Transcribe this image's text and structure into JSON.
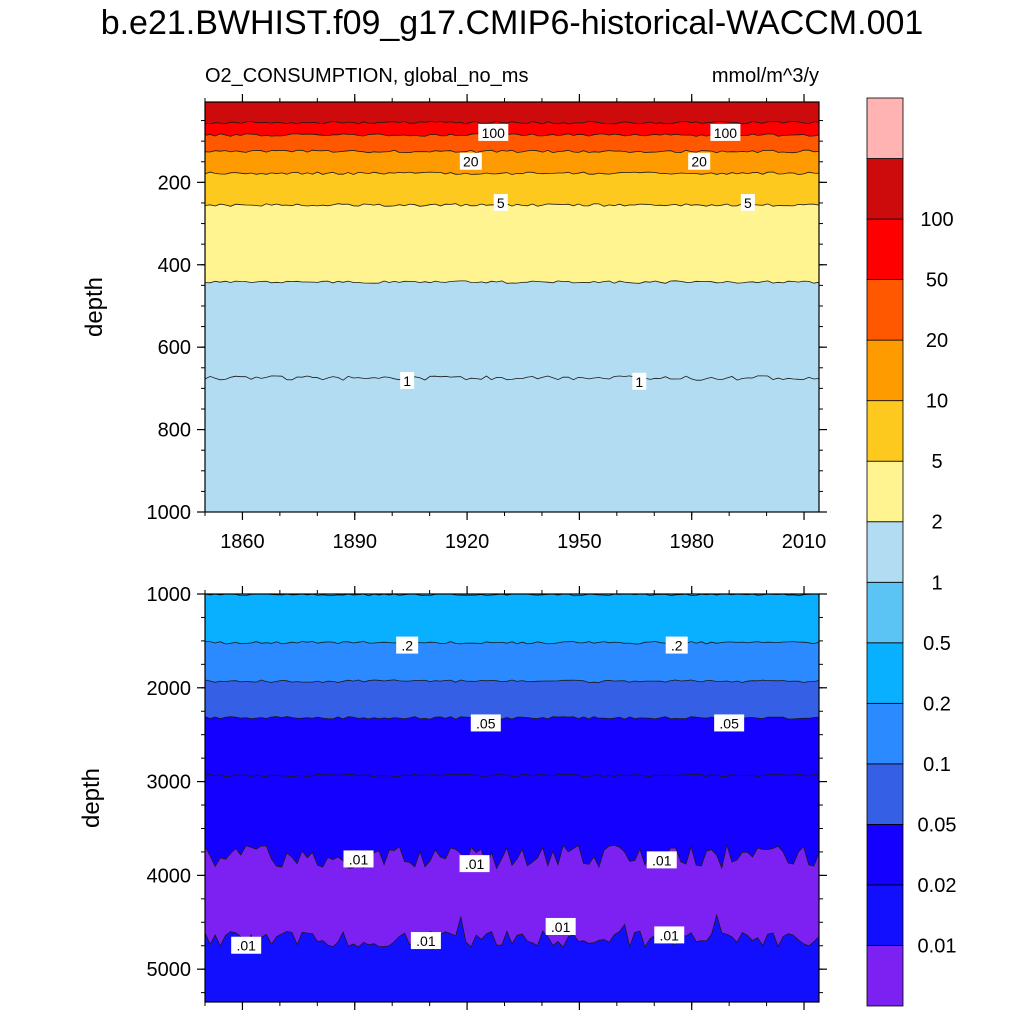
{
  "figure": {
    "title": "b.e21.BWHIST.f09_g17.CMIP6-historical-WACCM.001",
    "left_string": "O2_CONSUMPTION, global_no_ms",
    "right_string": "mmol/m^3/y"
  },
  "chart_data": [
    {
      "type": "contour",
      "panel": "upper",
      "ylabel": "depth",
      "xlabel": "",
      "xlim": [
        1850,
        2014
      ],
      "ylim": [
        1000,
        5
      ],
      "x_ticks": [
        "1860",
        "1890",
        "1920",
        "1950",
        "1980",
        "2010"
      ],
      "y_ticks": [
        "200",
        "400",
        "600",
        "800",
        "1000"
      ],
      "contour_levels": [
        0.01,
        0.02,
        0.05,
        0.1,
        0.2,
        0.5,
        1,
        2,
        5,
        10,
        20,
        50,
        100
      ],
      "contour_depths": [
        {
          "level": 100,
          "depth": 55
        },
        {
          "level": 50,
          "depth": 85
        },
        {
          "level": 20,
          "depth": 125
        },
        {
          "level": 10,
          "depth": 178
        },
        {
          "level": 5,
          "depth": 255
        },
        {
          "level": 2,
          "depth": 442
        },
        {
          "level": 1,
          "depth": 675
        }
      ],
      "contour_labels": [
        {
          "text": "100",
          "x": 1927,
          "depth": 80
        },
        {
          "text": "100",
          "x": 1989,
          "depth": 80
        },
        {
          "text": "20",
          "x": 1921,
          "depth": 150
        },
        {
          "text": "20",
          "x": 1982,
          "depth": 150
        },
        {
          "text": "5",
          "x": 1929,
          "depth": 250
        },
        {
          "text": "5",
          "x": 1995,
          "depth": 250
        },
        {
          "text": "1",
          "x": 1904,
          "depth": 682
        },
        {
          "text": "1",
          "x": 1966,
          "depth": 684
        }
      ]
    },
    {
      "type": "contour",
      "panel": "lower",
      "ylabel": "depth",
      "xlabel": "",
      "xlim": [
        1850,
        2014
      ],
      "ylim": [
        5350,
        1000
      ],
      "x_ticks": [],
      "y_ticks": [
        "1000",
        "2000",
        "3000",
        "4000",
        "5000"
      ],
      "contour_levels": [
        0.01,
        0.02,
        0.05,
        0.1,
        0.2,
        0.5,
        1,
        2,
        5,
        10,
        20,
        50,
        100
      ],
      "contour_depths": [
        {
          "level": 0.5,
          "depth": 1005
        },
        {
          "level": 0.2,
          "depth": 1520
        },
        {
          "level": 0.1,
          "depth": 1930
        },
        {
          "level": 0.05,
          "depth": 2320
        },
        {
          "level": 0.02,
          "depth": 2935
        },
        {
          "level": 0.01,
          "depth": 3800
        },
        {
          "level": 0.01,
          "depth": 4680
        }
      ],
      "contour_labels": [
        {
          "text": ".2",
          "x": 1904,
          "depth": 1550
        },
        {
          "text": ".2",
          "x": 1976,
          "depth": 1550
        },
        {
          "text": ".05",
          "x": 1925,
          "depth": 2380
        },
        {
          "text": ".05",
          "x": 1990,
          "depth": 2380
        },
        {
          "text": ".01",
          "x": 1891,
          "depth": 3830
        },
        {
          "text": ".01",
          "x": 1922,
          "depth": 3880
        },
        {
          "text": ".01",
          "x": 1972,
          "depth": 3840
        },
        {
          "text": ".01",
          "x": 1861,
          "depth": 4750
        },
        {
          "text": ".01",
          "x": 1909,
          "depth": 4700
        },
        {
          "text": ".01",
          "x": 1945,
          "depth": 4550
        },
        {
          "text": ".01",
          "x": 1974,
          "depth": 4640
        }
      ]
    }
  ],
  "colorbar": {
    "colors": [
      "#7d20f2",
      "#120fff",
      "#1400ff",
      "#355fe5",
      "#2b8aff",
      "#08b0ff",
      "#5cc3f5",
      "#b2dcf1",
      "#fff48f",
      "#fdc91f",
      "#fe9b00",
      "#ff5800",
      "#ff0000",
      "#cd0b0c",
      "#ffb3b3"
    ],
    "labels": [
      "0.01",
      "0.02",
      "0.05",
      "0.1",
      "0.2",
      "0.5",
      "1",
      "2",
      "5",
      "10",
      "20",
      "50",
      "100"
    ]
  }
}
